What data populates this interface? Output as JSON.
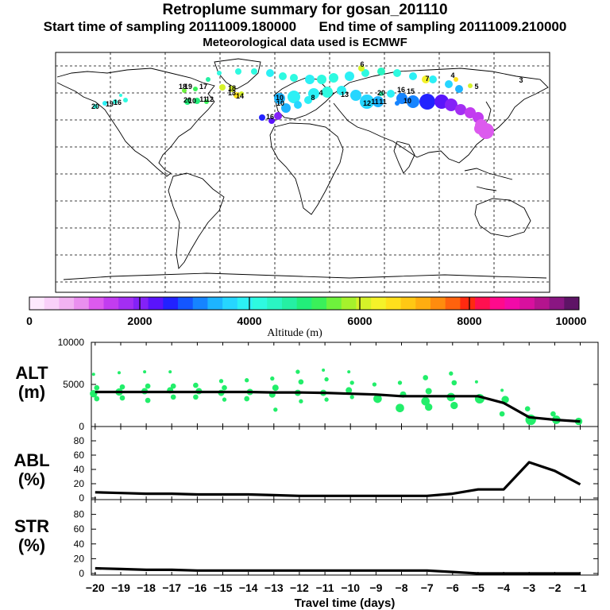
{
  "title": "Retroplume summary for gosan_201110",
  "start_time": "Start time of sampling 20111009.180000",
  "end_time": "End time of sampling 20111009.210000",
  "met_data": "Meteorological data used is ECMWF",
  "colorbar": {
    "label": "Altitude (m)",
    "ticks": [
      "0",
      "2000",
      "4000",
      "6000",
      "8000",
      "10000"
    ],
    "colors": [
      "#fde9fd",
      "#f9d0f9",
      "#f2b2f2",
      "#ea8fef",
      "#dc5aee",
      "#c23cf0",
      "#a32ef3",
      "#8422f7",
      "#5a14fb",
      "#2222ff",
      "#1456ff",
      "#1684ff",
      "#1db4ff",
      "#26d6ff",
      "#2cf0f5",
      "#2efae0",
      "#2af5c3",
      "#25f0a3",
      "#22ee7a",
      "#3af05a",
      "#6ef23c",
      "#a6f22c",
      "#d5f229",
      "#f5f229",
      "#ffe01c",
      "#ffc814",
      "#ffad10",
      "#ff8c0e",
      "#ff620d",
      "#ff2a10",
      "#ff1050",
      "#ff0a8c",
      "#f20aa8",
      "#d8109e",
      "#b4148e",
      "#8a1682",
      "#5e1466"
    ]
  },
  "chart_data": {
    "type": "line",
    "title": "Retroplume summary for gosan_201110",
    "xlabel": "Travel time (days)",
    "x_ticks": [
      -20,
      -19,
      -18,
      -17,
      -16,
      -15,
      -14,
      -13,
      -12,
      -11,
      -10,
      -9,
      -8,
      -7,
      -6,
      -5,
      -4,
      -3,
      -2,
      -1
    ],
    "x": [
      -20,
      -19,
      -18,
      -17,
      -16,
      -15,
      -14,
      -13,
      -12,
      -11,
      -10,
      -9,
      -8,
      -7,
      -6,
      -5,
      -4,
      -3,
      -2,
      -1
    ],
    "panels": [
      {
        "ylabel_line1": "ALT",
        "ylabel_line2": "(m)",
        "ylim": [
          0,
          10000
        ],
        "yticks": [
          0,
          5000,
          10000
        ],
        "ytick_labels": [
          "0",
          "5000",
          "10000"
        ],
        "line": [
          4100,
          4100,
          4100,
          4100,
          4100,
          4100,
          4100,
          4050,
          4050,
          4000,
          3900,
          3800,
          3600,
          3600,
          3600,
          3600,
          2800,
          1100,
          800,
          600
        ],
        "clusters": [
          {
            "x": -20,
            "alts": [
              6200,
              4600,
              3900,
              3300
            ],
            "sizes": [
              3,
              5,
              7,
              5
            ]
          },
          {
            "x": -19,
            "alts": [
              6400,
              4700,
              4100,
              3400
            ],
            "sizes": [
              3,
              5,
              7,
              5
            ]
          },
          {
            "x": -18,
            "alts": [
              6500,
              4800,
              4200,
              3100
            ],
            "sizes": [
              3,
              5,
              6,
              5
            ]
          },
          {
            "x": -17,
            "alts": [
              6500,
              4800,
              4300,
              3500
            ],
            "sizes": [
              3,
              5,
              6,
              5
            ]
          },
          {
            "x": -16,
            "alts": [
              4900,
              4200,
              3500
            ],
            "sizes": [
              5,
              6,
              5
            ]
          },
          {
            "x": -15,
            "alts": [
              5400,
              4600,
              4000,
              3200
            ],
            "sizes": [
              4,
              5,
              6,
              4
            ]
          },
          {
            "x": -14,
            "alts": [
              5500,
              4100,
              3300
            ],
            "sizes": [
              4,
              6,
              5
            ]
          },
          {
            "x": -13,
            "alts": [
              5700,
              4600,
              3800,
              2000
            ],
            "sizes": [
              4,
              6,
              6,
              4
            ]
          },
          {
            "x": -12,
            "alts": [
              6500,
              5300,
              4000,
              3000
            ],
            "sizes": [
              4,
              5,
              6,
              4
            ]
          },
          {
            "x": -11,
            "alts": [
              6700,
              5600,
              4000,
              3200
            ],
            "sizes": [
              3,
              4,
              6,
              4
            ]
          },
          {
            "x": -10,
            "alts": [
              6500,
              5200,
              4300,
              3500
            ],
            "sizes": [
              3,
              4,
              6,
              4
            ]
          },
          {
            "x": -9,
            "alts": [
              5000,
              3300
            ],
            "sizes": [
              4,
              8
            ]
          },
          {
            "x": -8,
            "alts": [
              5200,
              3800,
              2200
            ],
            "sizes": [
              4,
              6,
              8
            ]
          },
          {
            "x": -7,
            "alts": [
              5800,
              4200,
              3000,
              2300
            ],
            "sizes": [
              5,
              6,
              8,
              7
            ]
          },
          {
            "x": -6,
            "alts": [
              6300,
              5200,
              3500,
              2500
            ],
            "sizes": [
              4,
              5,
              8,
              7
            ]
          },
          {
            "x": -5,
            "alts": [
              5300,
              3300
            ],
            "sizes": [
              3,
              9
            ]
          },
          {
            "x": -4,
            "alts": [
              4300,
              3200,
              1500
            ],
            "sizes": [
              3,
              7,
              5
            ]
          },
          {
            "x": -3,
            "alts": [
              2100,
              800
            ],
            "sizes": [
              5,
              10
            ]
          },
          {
            "x": -2,
            "alts": [
              1500,
              800
            ],
            "sizes": [
              5,
              8
            ]
          },
          {
            "x": -1,
            "alts": [
              600
            ],
            "sizes": [
              7
            ]
          }
        ]
      },
      {
        "ylabel_line1": "ABL",
        "ylabel_line2": "(%)",
        "ylim": [
          0,
          100
        ],
        "yticks": [
          0,
          20,
          40,
          60,
          80
        ],
        "ytick_labels": [
          "0",
          "20",
          "40",
          "60",
          "80"
        ],
        "line": [
          8,
          7,
          6,
          6,
          5,
          5,
          5,
          4,
          3,
          3,
          3,
          3,
          3,
          3,
          6,
          12,
          12,
          50,
          38,
          19
        ]
      },
      {
        "ylabel_line1": "STR",
        "ylabel_line2": "(%)",
        "ylim": [
          0,
          100
        ],
        "yticks": [
          0,
          20,
          40,
          60,
          80
        ],
        "ytick_labels": [
          "0",
          "20",
          "40",
          "60",
          "80"
        ],
        "line": [
          7,
          6,
          5,
          5,
          4,
          4,
          4,
          4,
          4,
          4,
          4,
          4,
          4,
          4,
          2,
          0,
          0,
          0,
          0,
          0
        ]
      }
    ]
  },
  "map": {
    "trajectory_labels": [
      "10",
      "8",
      "4",
      "6",
      "7",
      "4",
      "5",
      "3",
      "10",
      "11",
      "10",
      "12",
      "11",
      "13",
      "20",
      "16",
      "15",
      "14",
      "13",
      "12",
      "18",
      "10",
      "11",
      "19",
      "18",
      "17",
      "16",
      "19",
      "20",
      "16",
      "20"
    ]
  }
}
